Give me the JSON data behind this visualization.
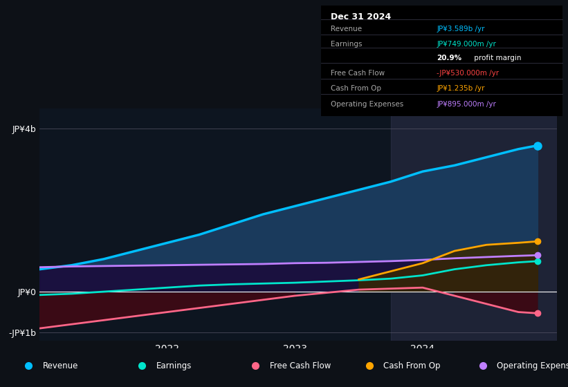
{
  "bg_color": "#0d1117",
  "plot_bg": "#0d1520",
  "ylim": [
    -1200000000.0,
    4500000000.0
  ],
  "info_table": {
    "title": "Dec 31 2024",
    "rows": [
      {
        "label": "Revenue",
        "value": "JP¥3.589b /yr",
        "value_color": "#00bfff"
      },
      {
        "label": "Earnings",
        "value": "JP¥749.000m /yr",
        "value_color": "#00e5cc"
      },
      {
        "label": "",
        "value": "20.9% profit margin",
        "value_color": "#ffffff"
      },
      {
        "label": "Free Cash Flow",
        "value": "-JP¥530.000m /yr",
        "value_color": "#ff4444"
      },
      {
        "label": "Cash From Op",
        "value": "JP¥1.235b /yr",
        "value_color": "#ffa500"
      },
      {
        "label": "Operating Expenses",
        "value": "JP¥895.000m /yr",
        "value_color": "#bf7fff"
      }
    ]
  },
  "legend": [
    {
      "label": "Revenue",
      "color": "#00bfff"
    },
    {
      "label": "Earnings",
      "color": "#00e5cc"
    },
    {
      "label": "Free Cash Flow",
      "color": "#ff6688"
    },
    {
      "label": "Cash From Op",
      "color": "#ffa500"
    },
    {
      "label": "Operating Expenses",
      "color": "#bf7fff"
    }
  ],
  "revenue": {
    "x": [
      2021.0,
      2021.25,
      2021.5,
      2021.75,
      2022.0,
      2022.25,
      2022.5,
      2022.75,
      2023.0,
      2023.25,
      2023.5,
      2023.75,
      2024.0,
      2024.25,
      2024.5,
      2024.75,
      2024.9
    ],
    "y": [
      550000000.0,
      650000000.0,
      800000000.0,
      1000000000.0,
      1200000000.0,
      1400000000.0,
      1650000000.0,
      1900000000.0,
      2100000000.0,
      2300000000.0,
      2500000000.0,
      2700000000.0,
      2950000000.0,
      3100000000.0,
      3300000000.0,
      3500000000.0,
      3589000000.0
    ],
    "color": "#00bfff",
    "fill_color": "#1a3a5c"
  },
  "earnings": {
    "x": [
      2021.0,
      2021.25,
      2021.5,
      2021.75,
      2022.0,
      2022.25,
      2022.5,
      2022.75,
      2023.0,
      2023.25,
      2023.5,
      2023.75,
      2024.0,
      2024.25,
      2024.5,
      2024.75,
      2024.9
    ],
    "y": [
      -80000000.0,
      -50000000.0,
      0,
      50000000.0,
      100000000.0,
      150000000.0,
      180000000.0,
      200000000.0,
      220000000.0,
      250000000.0,
      280000000.0,
      320000000.0,
      400000000.0,
      550000000.0,
      650000000.0,
      720000000.0,
      749000000.0
    ],
    "color": "#00e5cc",
    "fill_color": "#0a3535"
  },
  "free_cash_flow": {
    "x": [
      2021.0,
      2021.5,
      2022.0,
      2022.5,
      2023.0,
      2023.5,
      2024.0,
      2024.25,
      2024.5,
      2024.75,
      2024.9
    ],
    "y": [
      -900000000.0,
      -700000000.0,
      -500000000.0,
      -300000000.0,
      -100000000.0,
      50000000.0,
      100000000.0,
      -100000000.0,
      -300000000.0,
      -500000000.0,
      -530000000.0
    ],
    "color": "#ff6688",
    "fill_color": "#3a0a15"
  },
  "cash_from_op": {
    "x": [
      2023.5,
      2023.75,
      2024.0,
      2024.25,
      2024.5,
      2024.75,
      2024.9
    ],
    "y": [
      300000000.0,
      500000000.0,
      700000000.0,
      1000000000.0,
      1150000000.0,
      1200000000.0,
      1235000000.0
    ],
    "color": "#ffa500",
    "fill_color": "#3a2800"
  },
  "op_expenses": {
    "x": [
      2021.0,
      2021.25,
      2021.5,
      2021.75,
      2022.0,
      2022.25,
      2022.5,
      2022.75,
      2023.0,
      2023.25,
      2023.5,
      2023.75,
      2024.0,
      2024.25,
      2024.5,
      2024.75,
      2024.9
    ],
    "y": [
      600000000.0,
      620000000.0,
      630000000.0,
      640000000.0,
      650000000.0,
      660000000.0,
      670000000.0,
      680000000.0,
      700000000.0,
      710000000.0,
      730000000.0,
      750000000.0,
      780000000.0,
      820000000.0,
      850000000.0,
      880000000.0,
      895000000.0
    ],
    "color": "#bf7fff",
    "fill_color": "#1a0a3a"
  },
  "forecast_start": 2023.75,
  "x_min": 2021.0,
  "x_max": 2025.05
}
